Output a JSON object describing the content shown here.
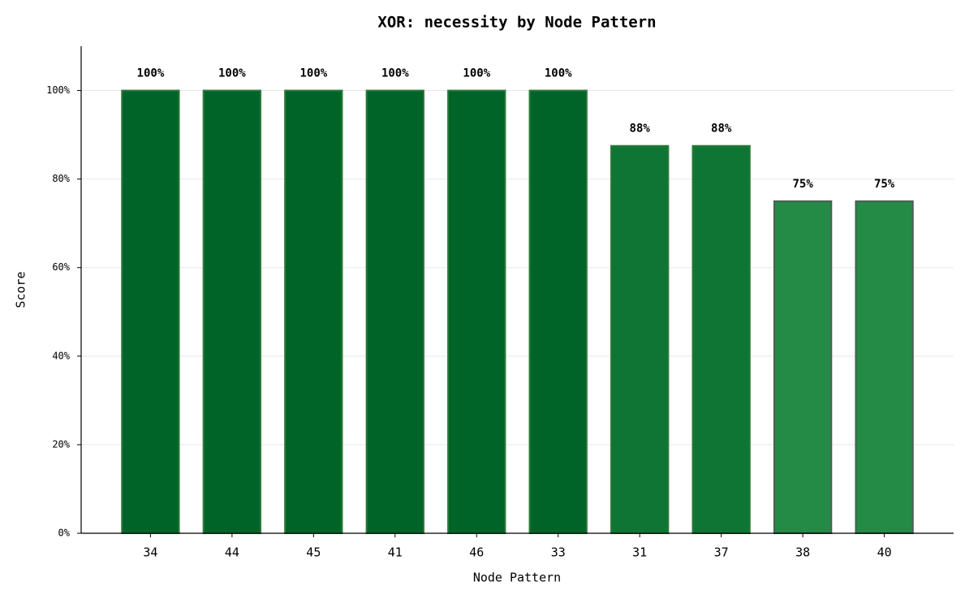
{
  "chart_data": {
    "type": "bar",
    "title": "XOR: necessity by Node Pattern",
    "x_label": "Node Pattern",
    "y_label": "Score",
    "categories": [
      "34",
      "44",
      "45",
      "41",
      "46",
      "33",
      "31",
      "37",
      "38",
      "40"
    ],
    "values": [
      100,
      100,
      100,
      100,
      100,
      100,
      87.5,
      87.5,
      75,
      75
    ],
    "value_labels": [
      "100%",
      "100%",
      "100%",
      "100%",
      "100%",
      "100%",
      "88%",
      "88%",
      "75%",
      "75%"
    ],
    "colors": [
      "#006428",
      "#006428",
      "#006428",
      "#006428",
      "#006428",
      "#006428",
      "#0f7534",
      "#0f7534",
      "#238b45",
      "#238b45"
    ],
    "ylim": [
      0,
      110
    ],
    "yticks": [
      {
        "value": 0,
        "label": "0%"
      },
      {
        "value": 20,
        "label": "20%"
      },
      {
        "value": 40,
        "label": "40%"
      },
      {
        "value": 60,
        "label": "60%"
      },
      {
        "value": 80,
        "label": "80%"
      },
      {
        "value": 100,
        "label": "100%"
      }
    ],
    "grid": true
  }
}
